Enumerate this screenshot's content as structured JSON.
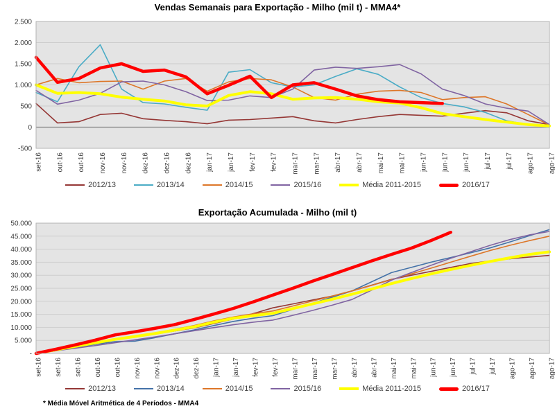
{
  "footnote": "* Média Móvel Aritmética de 4 Períodos - MMA4",
  "colors": {
    "plot_background": "#E4E4E4",
    "gridline": "#CDCDCD",
    "plot_border": "#B3B3B3",
    "zero_line": "#7F7F7F",
    "tick_text": "#404040"
  },
  "chart_data": [
    {
      "type": "line",
      "title": "Vendas Semanais para Exportação - Milho (mil t) - MMA4*",
      "xlabel": "",
      "ylabel": "",
      "ylim": [
        -500,
        2500
      ],
      "ytick_labels": [
        "2.500",
        "2.000",
        "1.500",
        "1.000",
        "500",
        "0",
        "-500"
      ],
      "zero_value": 0,
      "grid": true,
      "legend_position": "bottom",
      "categories": [
        "set-16",
        "out-16",
        "out-16",
        "nov-16",
        "nov-16",
        "dez-16",
        "dez-16",
        "dez-16",
        "jan-17",
        "jan-17",
        "fev-17",
        "fev-17",
        "mar-17",
        "mar-17",
        "abr-17",
        "abr-17",
        "mai-17",
        "mai-17",
        "jun-17",
        "jun-17",
        "jun-17",
        "jul-17",
        "jul-17",
        "ago-17",
        "ago-17"
      ],
      "series": [
        {
          "name": "2012/13",
          "color": "#953735",
          "width": 1.6,
          "values": [
            560,
            100,
            130,
            300,
            330,
            200,
            160,
            130,
            80,
            165,
            180,
            215,
            250,
            150,
            100,
            180,
            250,
            300,
            280,
            260,
            330,
            390,
            340,
            150,
            60
          ]
        },
        {
          "name": "2013/14",
          "color": "#4BACC6",
          "width": 1.6,
          "values": [
            820,
            600,
            1430,
            1950,
            900,
            580,
            550,
            470,
            400,
            1300,
            1360,
            1050,
            950,
            1000,
            1200,
            1380,
            1250,
            950,
            700,
            560,
            480,
            350,
            150,
            60,
            0
          ]
        },
        {
          "name": "2014/15",
          "color": "#DD7628",
          "width": 1.6,
          "values": [
            1000,
            1150,
            1050,
            1080,
            1090,
            900,
            1090,
            1150,
            850,
            1070,
            1150,
            1120,
            950,
            700,
            640,
            780,
            850,
            870,
            820,
            650,
            700,
            720,
            550,
            300,
            50
          ]
        },
        {
          "name": "2015/16",
          "color": "#8064A2",
          "width": 1.6,
          "values": [
            870,
            545,
            640,
            800,
            1070,
            1090,
            1000,
            840,
            630,
            640,
            740,
            700,
            900,
            1350,
            1420,
            1390,
            1430,
            1480,
            1260,
            900,
            750,
            550,
            450,
            380,
            60
          ]
        },
        {
          "name": "Média 2011-2015",
          "color": "#FFFF00",
          "width": 4,
          "values": [
            1000,
            800,
            820,
            790,
            710,
            660,
            620,
            530,
            500,
            750,
            840,
            790,
            660,
            690,
            700,
            660,
            600,
            570,
            460,
            320,
            250,
            180,
            120,
            60,
            30
          ]
        },
        {
          "name": "2016/17",
          "color": "#FF0000",
          "width": 4.5,
          "values": [
            1650,
            1060,
            1150,
            1400,
            1500,
            1320,
            1350,
            1190,
            790,
            990,
            1205,
            700,
            1000,
            1050,
            900,
            740,
            650,
            600,
            580,
            560
          ]
        }
      ]
    },
    {
      "type": "line",
      "title": "Exportação Acumulada - Milho (mil t)",
      "xlabel": "",
      "ylabel": "",
      "ylim": [
        0,
        50000
      ],
      "ytick_labels": [
        "50.000",
        "45.000",
        "40.000",
        "35.000",
        "30.000",
        "25.000",
        "20.000",
        "15.000",
        "10.000",
        "5.000",
        "-"
      ],
      "zero_value": null,
      "grid": true,
      "legend_position": "bottom",
      "categories": [
        "set-16",
        "set-16",
        "set-16",
        "out-16",
        "out-16",
        "nov-16",
        "nov-16",
        "dez-16",
        "dez-16",
        "jan-17",
        "jan-17",
        "fev-17",
        "fev-17",
        "mar-17",
        "mar-17",
        "mar-17",
        "abr-17",
        "abr-17",
        "mai-17",
        "mai-17",
        "jun-17",
        "jun-17",
        "jul-17",
        "jul-17",
        "ago-17",
        "ago-17",
        "ago-17"
      ],
      "series": [
        {
          "name": "2012/13",
          "color": "#953735",
          "width": 1.6,
          "values": [
            0,
            1300,
            2600,
            3900,
            5200,
            6300,
            7400,
            8600,
            9800,
            11500,
            13200,
            15300,
            17500,
            19000,
            20500,
            22000,
            24000,
            26200,
            28400,
            30000,
            31500,
            33000,
            34500,
            35500,
            36300,
            37000,
            37600
          ]
        },
        {
          "name": "2013/14",
          "color": "#4472A8",
          "width": 1.6,
          "values": [
            0,
            1100,
            2300,
            3500,
            4500,
            4700,
            6000,
            7500,
            9000,
            10700,
            12300,
            13500,
            14500,
            16900,
            19200,
            21600,
            24000,
            27500,
            31000,
            33000,
            35000,
            36800,
            38600,
            40500,
            42800,
            45200,
            47500
          ]
        },
        {
          "name": "2014/15",
          "color": "#DD7628",
          "width": 1.6,
          "values": [
            0,
            1400,
            2800,
            4200,
            5600,
            6700,
            7800,
            9200,
            10700,
            12500,
            14000,
            15200,
            16300,
            18200,
            20100,
            22000,
            24000,
            26100,
            28300,
            30500,
            32700,
            35000,
            37300,
            39500,
            41500,
            43300,
            45000
          ]
        },
        {
          "name": "2015/16",
          "color": "#8064A2",
          "width": 1.6,
          "values": [
            0,
            1000,
            2000,
            3000,
            4100,
            5200,
            6300,
            7500,
            8700,
            9900,
            11000,
            12000,
            12800,
            14600,
            16500,
            18500,
            20700,
            24300,
            28100,
            31000,
            33800,
            36500,
            39000,
            41500,
            43700,
            45500,
            46800
          ]
        },
        {
          "name": "Média 2011-2015",
          "color": "#FFFF00",
          "width": 4,
          "values": [
            0,
            1350,
            2700,
            4050,
            5400,
            6500,
            7600,
            8900,
            10200,
            12000,
            13500,
            14500,
            15400,
            17200,
            19000,
            20800,
            22700,
            24700,
            26800,
            28700,
            30500,
            32200,
            33800,
            35300,
            36700,
            38000,
            39000
          ]
        },
        {
          "name": "2016/17",
          "color": "#FF0000",
          "width": 4.5,
          "values": [
            0,
            1600,
            3300,
            5100,
            7100,
            8300,
            9600,
            11000,
            13000,
            15100,
            17300,
            19800,
            22400,
            25000,
            27700,
            30300,
            32900,
            35500,
            38000,
            40400,
            43300,
            46500
          ]
        }
      ]
    }
  ]
}
